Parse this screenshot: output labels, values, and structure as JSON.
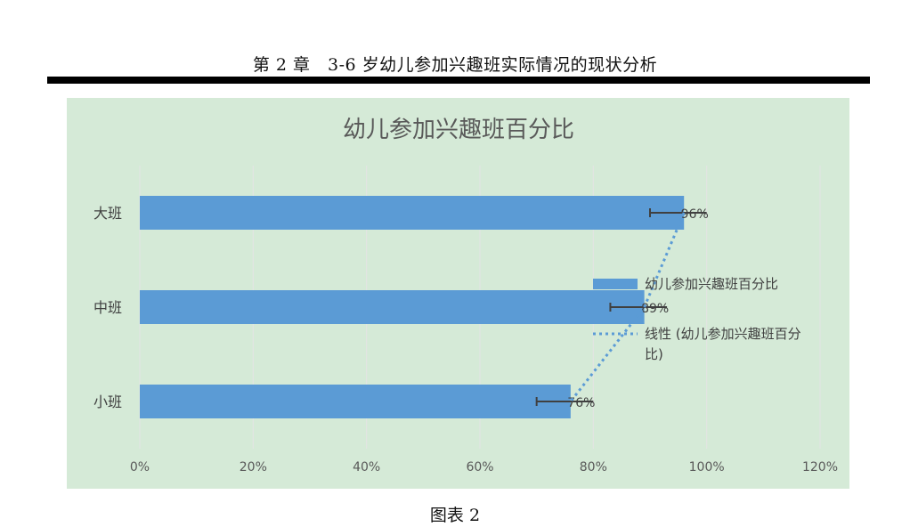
{
  "page": {
    "header": "第 2 章　3-6 岁幼儿参加兴趣班实际情况的现状分析",
    "caption": "图表 2"
  },
  "chart_data": {
    "type": "bar",
    "orientation": "horizontal",
    "title": "幼儿参加兴趣班百分比",
    "categories": [
      "大班",
      "中班",
      "小班"
    ],
    "series": [
      {
        "name": "幼儿参加兴趣班百分比",
        "values": [
          96,
          89,
          76
        ],
        "color": "#5b9bd5"
      }
    ],
    "data_labels": [
      "96%",
      "89%",
      "76%"
    ],
    "error_bars": true,
    "trendline": {
      "name": "线性 (幼儿参加兴趣班百分比)",
      "style": "dotted",
      "color": "#5b9bd5"
    },
    "x_ticks": [
      "0%",
      "20%",
      "40%",
      "60%",
      "80%",
      "100%",
      "120%"
    ],
    "xlim": [
      0,
      120
    ],
    "grid": true,
    "legend_placement": "right",
    "colors": {
      "background": "#d5ead7",
      "bar": "#5b9bd5",
      "gridline": "#e4e4e4",
      "error_bar": "#404040"
    }
  }
}
